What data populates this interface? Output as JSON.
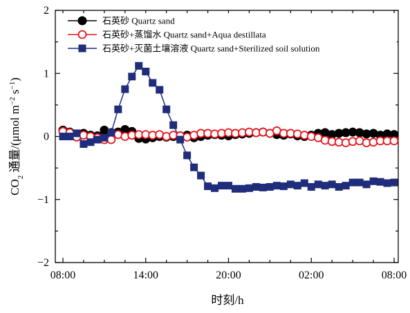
{
  "chart_data": {
    "type": "line",
    "xlabel": "时刻/h",
    "ylabel": {
      "prefix": "CO",
      "sub": "2",
      "mid": " 通量/(μmol m",
      "sup1": "−2",
      "mid2": " s",
      "sup2": "−1",
      "suffix": ")"
    },
    "xlim": [
      0,
      48
    ],
    "ylim": [
      -2,
      2
    ],
    "x_ticks": [
      0,
      6,
      12,
      18,
      24
    ],
    "x_tick_labels": [
      "08:00",
      "14:00",
      "20:00",
      "02:00",
      "08:00"
    ],
    "y_ticks": [
      -2,
      -1,
      0,
      1,
      2
    ],
    "y_tick_labels": [
      "−2",
      "−1",
      "0",
      "1",
      "2"
    ],
    "legend_position": "top-left",
    "grid": false,
    "series": [
      {
        "name": "石英砂 Quartz sand",
        "color": "#000000",
        "marker": "filled-circle",
        "x": [
          0,
          1,
          2,
          3,
          4,
          5,
          6,
          7,
          8,
          9,
          10,
          11,
          12,
          13,
          14,
          15,
          16,
          17,
          18,
          19,
          20,
          21,
          22,
          23,
          24,
          25,
          26,
          27,
          28,
          29,
          30,
          31,
          32,
          33,
          34,
          35,
          36,
          37,
          38,
          39,
          40,
          41,
          42,
          43,
          44,
          45,
          46,
          47,
          48
        ],
        "values": [
          0.1,
          0.07,
          0.03,
          0.05,
          0.02,
          0.01,
          0.1,
          0.06,
          0.07,
          0.11,
          0.08,
          -0.03,
          -0.04,
          -0.02,
          0.0,
          -0.01,
          0.0,
          0.01,
          0.02,
          -0.02,
          0.0,
          0.02,
          0.03,
          0.02,
          0.01,
          0.03,
          0.04,
          0.05,
          0.06,
          0.07,
          0.05,
          0.03,
          0.02,
          0.04,
          0.01,
          0.0,
          0.02,
          0.05,
          0.06,
          0.03,
          0.05,
          0.06,
          0.07,
          0.06,
          0.04,
          0.05,
          0.02,
          0.04,
          0.03
        ]
      },
      {
        "name": "石英砂+蒸馏水 Quartz sand+Aqua destillata",
        "color": "#e8141c",
        "marker": "open-circle",
        "x": [
          0,
          1,
          2,
          3,
          4,
          5,
          6,
          7,
          8,
          9,
          10,
          11,
          12,
          13,
          14,
          15,
          16,
          17,
          18,
          19,
          20,
          21,
          22,
          23,
          24,
          25,
          26,
          27,
          28,
          29,
          30,
          31,
          32,
          33,
          34,
          35,
          36,
          37,
          38,
          39,
          40,
          41,
          42,
          43,
          44,
          45,
          46,
          47,
          48
        ],
        "values": [
          0.08,
          0.06,
          -0.01,
          0.02,
          0.0,
          -0.02,
          -0.05,
          -0.05,
          0.03,
          0.0,
          0.02,
          0.03,
          0.03,
          0.02,
          0.03,
          0.0,
          0.02,
          0.01,
          -0.01,
          0.02,
          0.05,
          0.05,
          0.04,
          0.05,
          0.06,
          0.05,
          0.06,
          0.07,
          0.06,
          0.07,
          0.05,
          0.09,
          0.05,
          0.05,
          0.04,
          0.02,
          0.0,
          -0.02,
          -0.06,
          -0.08,
          -0.09,
          -0.1,
          -0.08,
          -0.07,
          -0.1,
          -0.09,
          -0.07,
          -0.07,
          -0.07
        ]
      },
      {
        "name": "石英砂+灭菌土壤溶液 Quartz sand+Sterilized soil solution",
        "color": "#1f2d7a",
        "marker": "filled-square",
        "x": [
          0,
          1,
          2,
          3,
          4,
          5,
          6,
          7,
          8,
          9,
          10,
          11,
          12,
          13,
          14,
          15,
          16,
          17,
          18,
          19,
          20,
          21,
          22,
          23,
          24,
          25,
          26,
          27,
          28,
          29,
          30,
          31,
          32,
          33,
          34,
          35,
          36,
          37,
          38,
          39,
          40,
          41,
          42,
          43,
          44,
          45,
          46,
          47,
          48
        ],
        "values": [
          0.0,
          0.0,
          0.05,
          -0.12,
          -0.09,
          -0.05,
          -0.02,
          0.06,
          0.43,
          0.75,
          0.95,
          1.12,
          1.03,
          0.85,
          0.74,
          0.43,
          0.18,
          -0.05,
          -0.3,
          -0.49,
          -0.62,
          -0.79,
          -0.82,
          -0.78,
          -0.78,
          -0.83,
          -0.83,
          -0.82,
          -0.8,
          -0.81,
          -0.8,
          -0.78,
          -0.79,
          -0.76,
          -0.78,
          -0.74,
          -0.8,
          -0.76,
          -0.78,
          -0.76,
          -0.8,
          -0.78,
          -0.73,
          -0.73,
          -0.76,
          -0.71,
          -0.72,
          -0.74,
          -0.73
        ]
      }
    ]
  }
}
